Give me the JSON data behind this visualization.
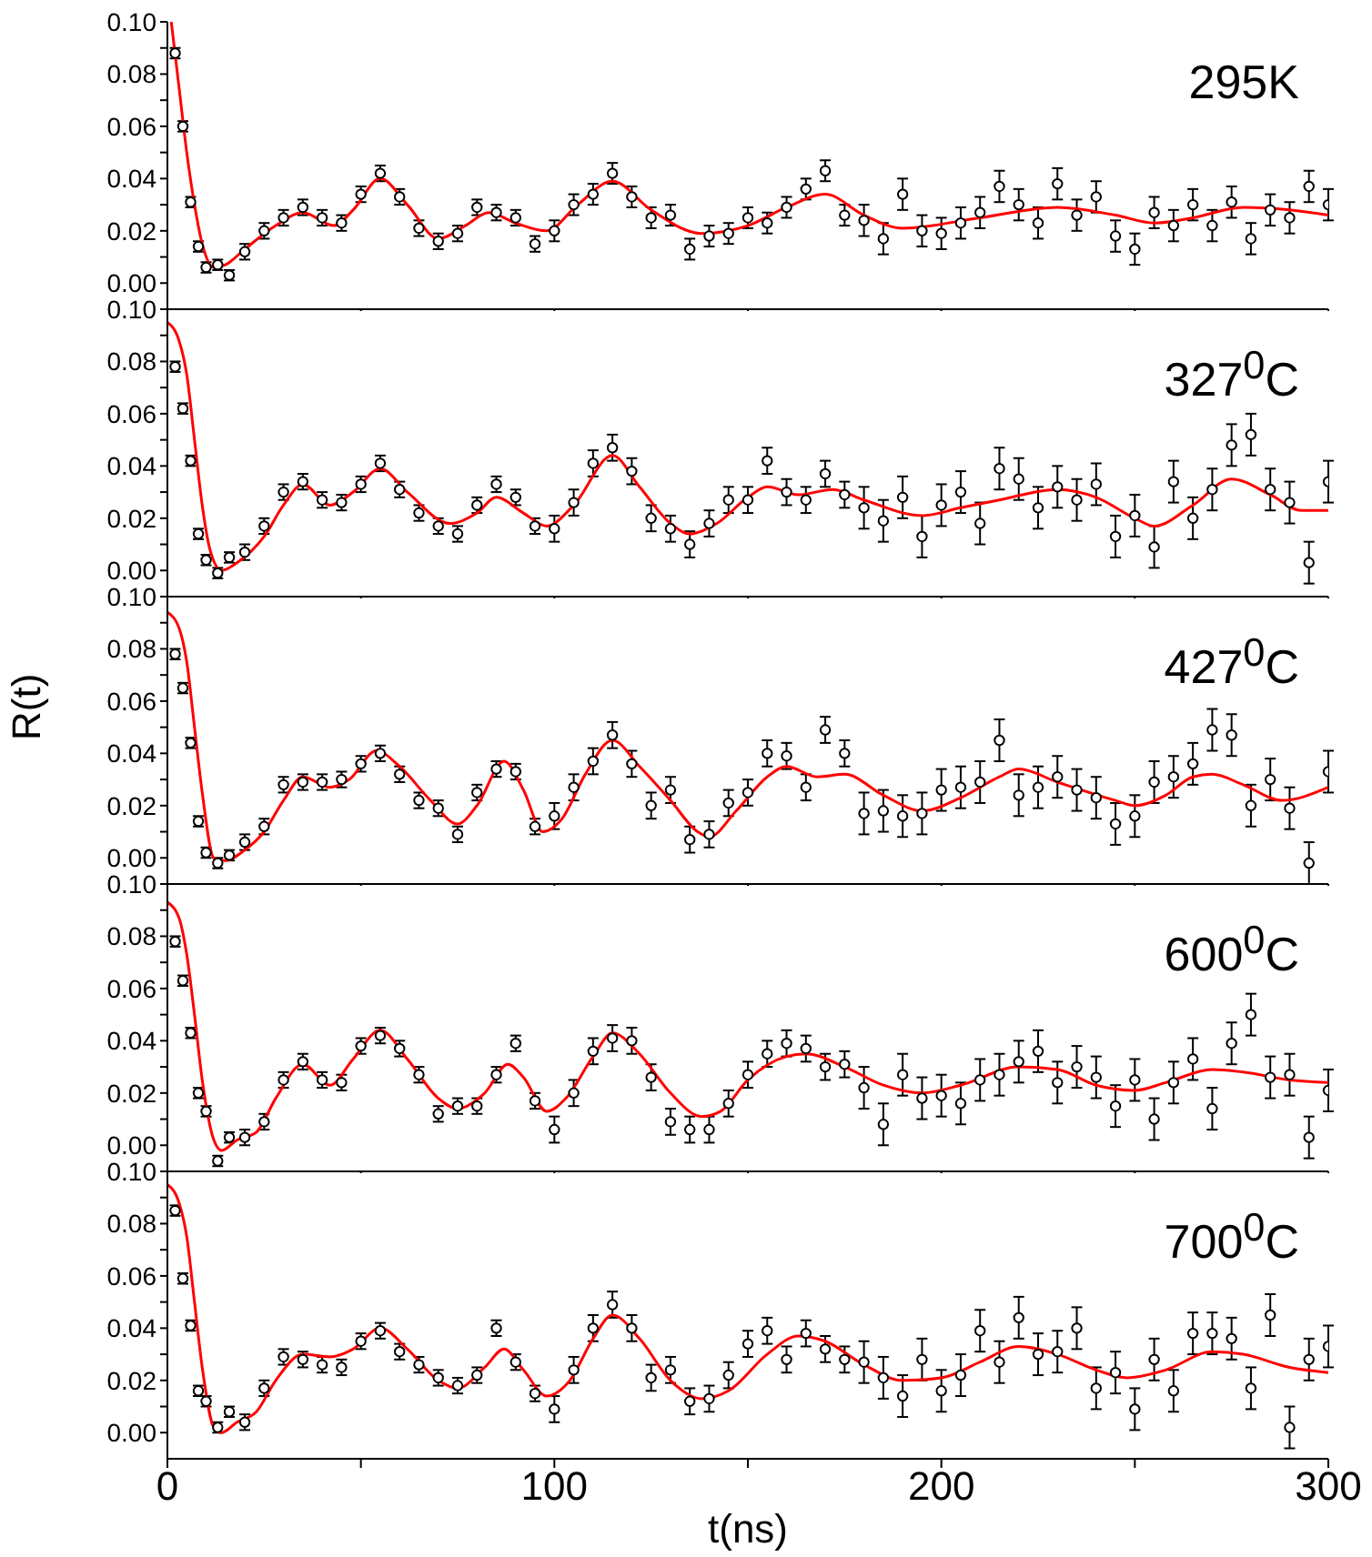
{
  "chart_data": [
    {
      "type": "scatter",
      "marker": "circle",
      "tick_labels": "y",
      "xlim": [
        0,
        300
      ],
      "ylim": [
        -0.01,
        0.1
      ],
      "xticks": [
        0,
        {
          "value": 50,
          "label": null
        },
        100,
        {
          "value": 150,
          "label": null
        },
        200,
        {
          "value": 250,
          "label": null
        },
        300
      ],
      "yticks": [
        {
          "value": 0,
          "label": "0.00"
        },
        {
          "value": 0.01,
          "label": null
        },
        {
          "value": 0.02,
          "label": "0.02"
        },
        {
          "value": 0.03,
          "label": null
        },
        {
          "value": 0.04,
          "label": "0.04"
        },
        {
          "value": 0.05,
          "label": null
        },
        {
          "value": 0.06,
          "label": "0.06"
        },
        {
          "value": 0.07,
          "label": null
        },
        {
          "value": 0.08,
          "label": "0.08"
        },
        {
          "value": 0.09,
          "label": null
        },
        {
          "value": 0.1,
          "label": "0.10"
        }
      ],
      "annotations": [
        "295K"
      ],
      "series": [
        {
          "color": "#000000",
          "x": [
            2,
            4,
            6,
            8,
            10,
            13,
            16,
            20,
            25,
            30,
            35,
            40,
            45,
            50,
            55,
            60,
            65,
            70,
            75,
            80,
            85,
            90,
            95,
            100,
            105,
            110,
            115,
            120,
            125,
            130,
            135,
            140,
            145,
            150,
            155,
            160,
            165,
            170,
            175,
            180,
            185,
            190,
            195,
            200,
            205,
            210,
            215,
            220,
            225,
            230,
            235,
            240,
            245,
            250,
            255,
            260,
            265,
            270,
            275,
            280,
            285,
            290,
            295,
            300
          ],
          "values": [
            0.088,
            0.06,
            0.031,
            0.014,
            0.006,
            0.007,
            0.003,
            0.012,
            0.02,
            0.025,
            0.029,
            0.025,
            0.023,
            0.034,
            0.042,
            0.033,
            0.021,
            0.016,
            0.019,
            0.029,
            0.027,
            0.025,
            0.015,
            0.02,
            0.03,
            0.034,
            0.042,
            0.033,
            0.025,
            0.026,
            0.013,
            0.018,
            0.019,
            0.025,
            0.023,
            0.029,
            0.036,
            0.043,
            0.026,
            0.024,
            0.017,
            0.034,
            0.02,
            0.019,
            0.023,
            0.027,
            0.037,
            0.03,
            0.023,
            0.038,
            0.026,
            0.033,
            0.018,
            0.013,
            0.027,
            0.022,
            0.03,
            0.022,
            0.031,
            0.017,
            0.028,
            0.025,
            0.037,
            0.03
          ],
          "errors": [
            0.002,
            0.002,
            0.002,
            0.002,
            0.002,
            0.002,
            0.002,
            0.003,
            0.003,
            0.003,
            0.003,
            0.003,
            0.003,
            0.003,
            0.003,
            0.003,
            0.003,
            0.003,
            0.003,
            0.003,
            0.003,
            0.003,
            0.003,
            0.004,
            0.004,
            0.004,
            0.004,
            0.004,
            0.004,
            0.004,
            0.004,
            0.004,
            0.004,
            0.004,
            0.004,
            0.004,
            0.004,
            0.004,
            0.004,
            0.006,
            0.006,
            0.006,
            0.006,
            0.006,
            0.006,
            0.006,
            0.006,
            0.006,
            0.006,
            0.006,
            0.006,
            0.006,
            0.006,
            0.006,
            0.006,
            0.006,
            0.006,
            0.006,
            0.006,
            0.006,
            0.006,
            0.006,
            0.006,
            0.006
          ]
        },
        {
          "type": "line",
          "marker": "none",
          "color": "#ff0000",
          "x": [
            1,
            3,
            5,
            7,
            9,
            12,
            15,
            20,
            28,
            35,
            43,
            48,
            55,
            62,
            70,
            77,
            83,
            90,
            98,
            106,
            115,
            125,
            138,
            150,
            160,
            170,
            180,
            190,
            210,
            230,
            245,
            255,
            265,
            278,
            290,
            300
          ],
          "values": [
            0.1,
            0.075,
            0.05,
            0.03,
            0.015,
            0.006,
            0.007,
            0.013,
            0.022,
            0.027,
            0.022,
            0.028,
            0.04,
            0.03,
            0.017,
            0.022,
            0.027,
            0.023,
            0.02,
            0.03,
            0.039,
            0.028,
            0.019,
            0.022,
            0.029,
            0.034,
            0.026,
            0.021,
            0.025,
            0.029,
            0.026,
            0.023,
            0.025,
            0.029,
            0.028,
            0.026
          ]
        }
      ]
    },
    {
      "type": "scatter",
      "marker": "circle",
      "tick_labels": "y",
      "xlim": [
        0,
        300
      ],
      "ylim": [
        -0.01,
        0.1
      ],
      "xticks": [
        0,
        {
          "value": 50,
          "label": null
        },
        100,
        {
          "value": 150,
          "label": null
        },
        200,
        {
          "value": 250,
          "label": null
        },
        300
      ],
      "yticks": [
        {
          "value": 0,
          "label": "0.00"
        },
        {
          "value": 0.01,
          "label": null
        },
        {
          "value": 0.02,
          "label": "0.02"
        },
        {
          "value": 0.03,
          "label": null
        },
        {
          "value": 0.04,
          "label": "0.04"
        },
        {
          "value": 0.05,
          "label": null
        },
        {
          "value": 0.06,
          "label": "0.06"
        },
        {
          "value": 0.07,
          "label": null
        },
        {
          "value": 0.08,
          "label": "0.08"
        },
        {
          "value": 0.09,
          "label": null
        },
        {
          "value": 0.1,
          "label": "0.10"
        }
      ],
      "annotations": [
        "327$^{0}$C"
      ],
      "series": [
        {
          "color": "#000000",
          "x": [
            2,
            4,
            6,
            8,
            10,
            13,
            16,
            20,
            25,
            30,
            35,
            40,
            45,
            50,
            55,
            60,
            65,
            70,
            75,
            80,
            85,
            90,
            95,
            100,
            105,
            110,
            115,
            120,
            125,
            130,
            135,
            140,
            145,
            150,
            155,
            160,
            165,
            170,
            175,
            180,
            185,
            190,
            195,
            200,
            205,
            210,
            215,
            220,
            225,
            230,
            235,
            240,
            245,
            250,
            255,
            260,
            265,
            270,
            275,
            280,
            285,
            290,
            295,
            300
          ],
          "values": [
            0.078,
            0.062,
            0.042,
            0.014,
            0.004,
            -0.001,
            0.005,
            0.007,
            0.017,
            0.03,
            0.034,
            0.027,
            0.026,
            0.033,
            0.041,
            0.031,
            0.022,
            0.017,
            0.014,
            0.025,
            0.033,
            0.028,
            0.017,
            0.016,
            0.026,
            0.041,
            0.047,
            0.038,
            0.02,
            0.016,
            0.01,
            0.018,
            0.027,
            0.027,
            0.042,
            0.03,
            0.027,
            0.037,
            0.029,
            0.024,
            0.019,
            0.028,
            0.013,
            0.025,
            0.03,
            0.018,
            0.039,
            0.035,
            0.024,
            0.032,
            0.027,
            0.033,
            0.013,
            0.021,
            0.009,
            0.034,
            0.02,
            0.031,
            0.048,
            0.052,
            0.031,
            0.026,
            0.003,
            0.034
          ],
          "errors": [
            0.002,
            0.002,
            0.002,
            0.002,
            0.002,
            0.002,
            0.002,
            0.003,
            0.003,
            0.003,
            0.003,
            0.003,
            0.003,
            0.003,
            0.003,
            0.003,
            0.003,
            0.003,
            0.003,
            0.003,
            0.003,
            0.003,
            0.003,
            0.005,
            0.005,
            0.005,
            0.005,
            0.005,
            0.005,
            0.005,
            0.005,
            0.005,
            0.005,
            0.005,
            0.005,
            0.005,
            0.005,
            0.005,
            0.005,
            0.008,
            0.008,
            0.008,
            0.008,
            0.008,
            0.008,
            0.008,
            0.008,
            0.008,
            0.008,
            0.008,
            0.008,
            0.008,
            0.008,
            0.008,
            0.008,
            0.008,
            0.008,
            0.008,
            0.008,
            0.008,
            0.008,
            0.008,
            0.008,
            0.008
          ]
        },
        {
          "type": "line",
          "marker": "none",
          "color": "#ff0000",
          "x": [
            0,
            3,
            5,
            7,
            9,
            11,
            14,
            18,
            25,
            30,
            35,
            42,
            48,
            55,
            62,
            73,
            80,
            85,
            92,
            98,
            105,
            115,
            122,
            130,
            135,
            142,
            150,
            155,
            163,
            172,
            180,
            195,
            205,
            215,
            230,
            240,
            250,
            255,
            265,
            275,
            285,
            293,
            300
          ],
          "values": [
            0.095,
            0.088,
            0.075,
            0.05,
            0.025,
            0.008,
            0.0,
            0.003,
            0.013,
            0.025,
            0.033,
            0.025,
            0.03,
            0.039,
            0.03,
            0.018,
            0.022,
            0.028,
            0.022,
            0.017,
            0.025,
            0.044,
            0.032,
            0.018,
            0.014,
            0.018,
            0.028,
            0.032,
            0.029,
            0.031,
            0.027,
            0.021,
            0.024,
            0.027,
            0.031,
            0.028,
            0.02,
            0.017,
            0.025,
            0.035,
            0.029,
            0.023,
            0.023
          ]
        }
      ]
    },
    {
      "type": "scatter",
      "marker": "circle",
      "tick_labels": "y",
      "xlim": [
        0,
        300
      ],
      "ylim": [
        -0.01,
        0.1
      ],
      "ylabel": "R(t)",
      "xticks": [
        0,
        {
          "value": 50,
          "label": null
        },
        100,
        {
          "value": 150,
          "label": null
        },
        200,
        {
          "value": 250,
          "label": null
        },
        300
      ],
      "yticks": [
        {
          "value": 0,
          "label": "0.00"
        },
        {
          "value": 0.01,
          "label": null
        },
        {
          "value": 0.02,
          "label": "0.02"
        },
        {
          "value": 0.03,
          "label": null
        },
        {
          "value": 0.04,
          "label": "0.04"
        },
        {
          "value": 0.05,
          "label": null
        },
        {
          "value": 0.06,
          "label": "0.06"
        },
        {
          "value": 0.07,
          "label": null
        },
        {
          "value": 0.08,
          "label": "0.08"
        },
        {
          "value": 0.09,
          "label": null
        },
        {
          "value": 0.1,
          "label": "0.10"
        }
      ],
      "annotations": [
        "427$^{0}$C"
      ],
      "series": [
        {
          "color": "#000000",
          "x": [
            2,
            4,
            6,
            8,
            10,
            13,
            16,
            20,
            25,
            30,
            35,
            40,
            45,
            50,
            55,
            60,
            65,
            70,
            75,
            80,
            85,
            90,
            95,
            100,
            105,
            110,
            115,
            120,
            125,
            130,
            135,
            140,
            145,
            150,
            155,
            160,
            165,
            170,
            175,
            180,
            185,
            190,
            195,
            200,
            205,
            210,
            215,
            220,
            225,
            230,
            235,
            240,
            245,
            250,
            255,
            260,
            265,
            270,
            275,
            280,
            285,
            290,
            295,
            300
          ],
          "values": [
            0.078,
            0.065,
            0.044,
            0.014,
            0.002,
            -0.002,
            0.001,
            0.006,
            0.012,
            0.028,
            0.029,
            0.029,
            0.03,
            0.036,
            0.04,
            0.032,
            0.022,
            0.019,
            0.009,
            0.025,
            0.034,
            0.033,
            0.012,
            0.016,
            0.027,
            0.037,
            0.047,
            0.036,
            0.02,
            0.026,
            0.007,
            0.009,
            0.021,
            0.025,
            0.04,
            0.039,
            0.027,
            0.049,
            0.04,
            0.017,
            0.018,
            0.016,
            0.017,
            0.026,
            0.027,
            0.029,
            0.045,
            0.024,
            0.027,
            0.031,
            0.026,
            0.023,
            0.013,
            0.016,
            0.029,
            0.031,
            0.036,
            0.049,
            0.047,
            0.02,
            0.03,
            0.019,
            -0.002,
            0.033
          ],
          "errors": [
            0.002,
            0.002,
            0.002,
            0.002,
            0.002,
            0.002,
            0.002,
            0.003,
            0.003,
            0.003,
            0.003,
            0.003,
            0.003,
            0.003,
            0.003,
            0.003,
            0.003,
            0.003,
            0.003,
            0.003,
            0.003,
            0.003,
            0.003,
            0.005,
            0.005,
            0.005,
            0.005,
            0.005,
            0.005,
            0.005,
            0.005,
            0.005,
            0.005,
            0.005,
            0.005,
            0.005,
            0.005,
            0.005,
            0.005,
            0.008,
            0.008,
            0.008,
            0.008,
            0.008,
            0.008,
            0.008,
            0.008,
            0.008,
            0.008,
            0.008,
            0.008,
            0.008,
            0.008,
            0.008,
            0.008,
            0.008,
            0.008,
            0.008,
            0.008,
            0.008,
            0.008,
            0.008,
            0.008,
            0.008
          ]
        },
        {
          "type": "line",
          "marker": "none",
          "color": "#ff0000",
          "x": [
            0,
            3,
            5,
            7,
            9,
            12,
            15,
            20,
            25,
            30,
            35,
            42,
            47,
            54,
            60,
            68,
            75,
            80,
            87,
            92,
            97,
            102,
            108,
            115,
            122,
            130,
            137,
            140,
            147,
            155,
            160,
            168,
            175,
            185,
            195,
            205,
            215,
            220,
            230,
            245,
            250,
            258,
            265,
            270,
            278,
            288,
            300
          ],
          "values": [
            0.094,
            0.088,
            0.075,
            0.05,
            0.025,
            0.0,
            -0.001,
            0.003,
            0.01,
            0.022,
            0.031,
            0.027,
            0.03,
            0.041,
            0.035,
            0.022,
            0.013,
            0.02,
            0.037,
            0.026,
            0.01,
            0.015,
            0.032,
            0.045,
            0.035,
            0.022,
            0.01,
            0.008,
            0.018,
            0.031,
            0.035,
            0.031,
            0.032,
            0.024,
            0.018,
            0.023,
            0.031,
            0.034,
            0.029,
            0.022,
            0.02,
            0.024,
            0.031,
            0.032,
            0.028,
            0.022,
            0.027
          ]
        }
      ]
    },
    {
      "type": "scatter",
      "marker": "circle",
      "tick_labels": "y",
      "xlim": [
        0,
        300
      ],
      "ylim": [
        -0.01,
        0.1
      ],
      "xticks": [
        0,
        {
          "value": 50,
          "label": null
        },
        100,
        {
          "value": 150,
          "label": null
        },
        200,
        {
          "value": 250,
          "label": null
        },
        300
      ],
      "yticks": [
        {
          "value": 0,
          "label": "0.00"
        },
        {
          "value": 0.01,
          "label": null
        },
        {
          "value": 0.02,
          "label": "0.02"
        },
        {
          "value": 0.03,
          "label": null
        },
        {
          "value": 0.04,
          "label": "0.04"
        },
        {
          "value": 0.05,
          "label": null
        },
        {
          "value": 0.06,
          "label": "0.06"
        },
        {
          "value": 0.07,
          "label": null
        },
        {
          "value": 0.08,
          "label": "0.08"
        },
        {
          "value": 0.09,
          "label": null
        },
        {
          "value": 0.1,
          "label": "0.10"
        }
      ],
      "annotations": [
        "600$^{0}$C"
      ],
      "series": [
        {
          "color": "#000000",
          "x": [
            2,
            4,
            6,
            8,
            10,
            13,
            16,
            20,
            25,
            30,
            35,
            40,
            45,
            50,
            55,
            60,
            65,
            70,
            75,
            80,
            85,
            90,
            95,
            100,
            105,
            110,
            115,
            120,
            125,
            130,
            135,
            140,
            145,
            150,
            155,
            160,
            165,
            170,
            175,
            180,
            185,
            190,
            195,
            200,
            205,
            210,
            215,
            220,
            225,
            230,
            235,
            240,
            245,
            250,
            255,
            260,
            265,
            270,
            275,
            280,
            285,
            290,
            295,
            300
          ],
          "values": [
            0.078,
            0.063,
            0.043,
            0.02,
            0.013,
            -0.006,
            0.003,
            0.003,
            0.009,
            0.025,
            0.032,
            0.025,
            0.024,
            0.038,
            0.042,
            0.037,
            0.027,
            0.012,
            0.015,
            0.015,
            0.027,
            0.039,
            0.017,
            0.006,
            0.02,
            0.036,
            0.041,
            0.04,
            0.026,
            0.009,
            0.006,
            0.006,
            0.016,
            0.027,
            0.035,
            0.039,
            0.037,
            0.03,
            0.031,
            0.022,
            0.008,
            0.027,
            0.018,
            0.019,
            0.016,
            0.025,
            0.027,
            0.032,
            0.036,
            0.024,
            0.03,
            0.026,
            0.015,
            0.025,
            0.01,
            0.024,
            0.033,
            0.014,
            0.039,
            0.05,
            0.026,
            0.027,
            0.003,
            0.021
          ],
          "errors": [
            0.002,
            0.002,
            0.002,
            0.002,
            0.002,
            0.002,
            0.002,
            0.003,
            0.003,
            0.003,
            0.003,
            0.003,
            0.003,
            0.003,
            0.003,
            0.003,
            0.003,
            0.003,
            0.003,
            0.003,
            0.003,
            0.003,
            0.003,
            0.005,
            0.005,
            0.005,
            0.005,
            0.005,
            0.005,
            0.005,
            0.005,
            0.005,
            0.005,
            0.005,
            0.005,
            0.005,
            0.005,
            0.005,
            0.005,
            0.008,
            0.008,
            0.008,
            0.008,
            0.008,
            0.008,
            0.008,
            0.008,
            0.008,
            0.008,
            0.008,
            0.008,
            0.008,
            0.008,
            0.008,
            0.008,
            0.008,
            0.008,
            0.008,
            0.008,
            0.008,
            0.008,
            0.008,
            0.008,
            0.008
          ]
        },
        {
          "type": "line",
          "marker": "none",
          "color": "#ff0000",
          "x": [
            0,
            3,
            5,
            7,
            9,
            12,
            14,
            18,
            23,
            28,
            35,
            42,
            48,
            55,
            62,
            70,
            75,
            82,
            88,
            92,
            98,
            103,
            110,
            115,
            122,
            130,
            138,
            143,
            150,
            160,
            165,
            175,
            185,
            195,
            205,
            220,
            230,
            240,
            250,
            258,
            270,
            278,
            290,
            300
          ],
          "values": [
            0.093,
            0.087,
            0.073,
            0.05,
            0.025,
            0.002,
            -0.002,
            0.002,
            0.005,
            0.018,
            0.031,
            0.023,
            0.033,
            0.044,
            0.033,
            0.018,
            0.014,
            0.02,
            0.031,
            0.026,
            0.013,
            0.018,
            0.034,
            0.043,
            0.035,
            0.02,
            0.011,
            0.013,
            0.025,
            0.034,
            0.035,
            0.03,
            0.023,
            0.02,
            0.023,
            0.03,
            0.029,
            0.023,
            0.021,
            0.024,
            0.029,
            0.028,
            0.025,
            0.024
          ]
        }
      ]
    },
    {
      "type": "scatter",
      "marker": "circle",
      "xlim": [
        0,
        300
      ],
      "ylim": [
        -0.01,
        0.1
      ],
      "xlabel": "t(ns)",
      "xticks": [
        0,
        {
          "value": 50,
          "label": null
        },
        100,
        {
          "value": 150,
          "label": null
        },
        200,
        {
          "value": 250,
          "label": null
        },
        300
      ],
      "yticks": [
        {
          "value": 0,
          "label": "0.00"
        },
        {
          "value": 0.01,
          "label": null
        },
        {
          "value": 0.02,
          "label": "0.02"
        },
        {
          "value": 0.03,
          "label": null
        },
        {
          "value": 0.04,
          "label": "0.04"
        },
        {
          "value": 0.05,
          "label": null
        },
        {
          "value": 0.06,
          "label": "0.06"
        },
        {
          "value": 0.07,
          "label": null
        },
        {
          "value": 0.08,
          "label": "0.08"
        },
        {
          "value": 0.09,
          "label": null
        },
        {
          "value": 0.1,
          "label": "0.10"
        }
      ],
      "annotations": [
        "700$^{0}$C"
      ],
      "series": [
        {
          "color": "#000000",
          "x": [
            2,
            4,
            6,
            8,
            10,
            13,
            16,
            20,
            25,
            30,
            35,
            40,
            45,
            50,
            55,
            60,
            65,
            70,
            75,
            80,
            85,
            90,
            95,
            100,
            105,
            110,
            115,
            120,
            125,
            130,
            135,
            140,
            145,
            150,
            155,
            160,
            165,
            170,
            175,
            180,
            185,
            190,
            195,
            200,
            205,
            210,
            215,
            220,
            225,
            230,
            235,
            240,
            245,
            250,
            255,
            260,
            265,
            270,
            275,
            280,
            285,
            290,
            295,
            300
          ],
          "values": [
            0.085,
            0.059,
            0.041,
            0.016,
            0.012,
            0.002,
            0.008,
            0.004,
            0.017,
            0.029,
            0.028,
            0.026,
            0.025,
            0.035,
            0.039,
            0.031,
            0.026,
            0.021,
            0.018,
            0.022,
            0.04,
            0.027,
            0.015,
            0.009,
            0.024,
            0.04,
            0.049,
            0.04,
            0.021,
            0.024,
            0.012,
            0.013,
            0.022,
            0.034,
            0.039,
            0.028,
            0.038,
            0.032,
            0.028,
            0.027,
            0.021,
            0.014,
            0.028,
            0.016,
            0.022,
            0.039,
            0.027,
            0.044,
            0.03,
            0.031,
            0.04,
            0.017,
            0.023,
            0.009,
            0.028,
            0.016,
            0.038,
            0.038,
            0.036,
            0.017,
            0.045,
            0.002,
            0.028,
            0.033
          ],
          "errors": [
            0.002,
            0.002,
            0.002,
            0.002,
            0.002,
            0.002,
            0.002,
            0.003,
            0.003,
            0.003,
            0.003,
            0.003,
            0.003,
            0.003,
            0.003,
            0.003,
            0.003,
            0.003,
            0.003,
            0.003,
            0.003,
            0.003,
            0.003,
            0.005,
            0.005,
            0.005,
            0.005,
            0.005,
            0.005,
            0.005,
            0.005,
            0.005,
            0.005,
            0.005,
            0.005,
            0.005,
            0.005,
            0.005,
            0.005,
            0.008,
            0.008,
            0.008,
            0.008,
            0.008,
            0.008,
            0.008,
            0.008,
            0.008,
            0.008,
            0.008,
            0.008,
            0.008,
            0.008,
            0.008,
            0.008,
            0.008,
            0.008,
            0.008,
            0.008,
            0.008,
            0.008,
            0.008,
            0.008,
            0.008
          ]
        },
        {
          "type": "line",
          "marker": "none",
          "color": "#ff0000",
          "x": [
            0,
            3,
            5,
            7,
            9,
            12,
            14,
            18,
            23,
            28,
            35,
            42,
            48,
            55,
            62,
            70,
            75,
            82,
            87,
            92,
            98,
            104,
            110,
            115,
            122,
            130,
            138,
            145,
            155,
            163,
            170,
            180,
            190,
            200,
            210,
            220,
            230,
            240,
            248,
            258,
            270,
            278,
            290,
            300
          ],
          "values": [
            0.095,
            0.088,
            0.075,
            0.05,
            0.025,
            0.002,
            0.0,
            0.004,
            0.008,
            0.02,
            0.03,
            0.029,
            0.032,
            0.04,
            0.032,
            0.02,
            0.017,
            0.025,
            0.032,
            0.024,
            0.014,
            0.02,
            0.036,
            0.045,
            0.036,
            0.02,
            0.013,
            0.016,
            0.03,
            0.037,
            0.035,
            0.026,
            0.02,
            0.021,
            0.027,
            0.033,
            0.03,
            0.024,
            0.021,
            0.024,
            0.031,
            0.03,
            0.025,
            0.023
          ]
        }
      ]
    }
  ]
}
